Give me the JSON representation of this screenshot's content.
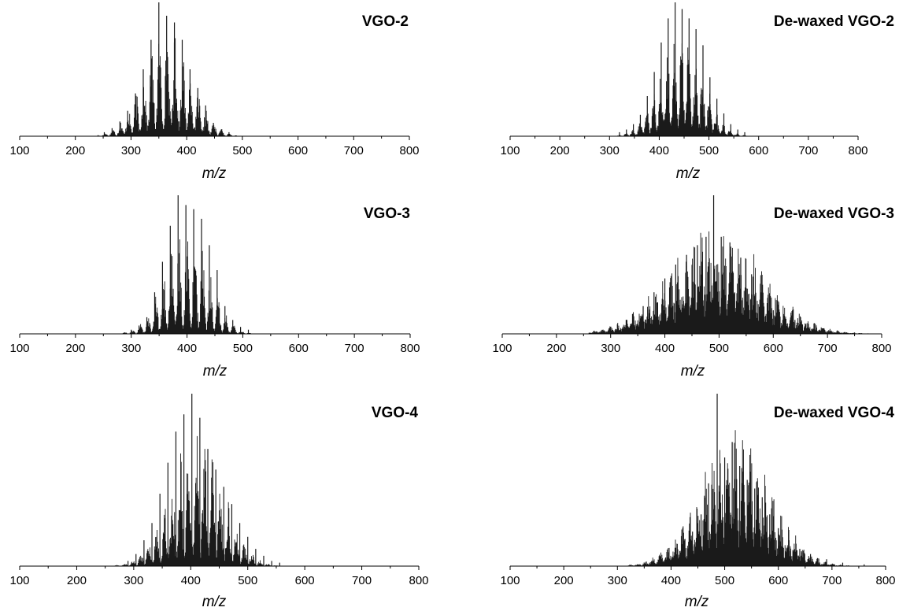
{
  "figure": {
    "colors": {
      "peaks": "#1a1a1a",
      "axis": "#000000",
      "background": "#ffffff"
    }
  },
  "chart_data": [
    {
      "type": "bar",
      "title": "VGO-2",
      "xlabel": "m/z",
      "ylabel": "",
      "x_ticks": [
        100,
        200,
        300,
        400,
        500,
        600,
        700,
        800
      ],
      "xlim": [
        100,
        800
      ],
      "ylim": [
        0,
        1
      ],
      "y_axis_shown": false,
      "distribution": {
        "center": 365,
        "spread": 42,
        "start": 240,
        "end": 490,
        "comb_spacing": 14,
        "comb_strength": 0.85
      },
      "peaks": [
        [
          252,
          0.03
        ],
        [
          266,
          0.06
        ],
        [
          280,
          0.11
        ],
        [
          294,
          0.19
        ],
        [
          308,
          0.32
        ],
        [
          322,
          0.5
        ],
        [
          336,
          0.72
        ],
        [
          350,
          1.0
        ],
        [
          364,
          0.9
        ],
        [
          378,
          0.85
        ],
        [
          392,
          0.72
        ],
        [
          406,
          0.5
        ],
        [
          420,
          0.36
        ],
        [
          434,
          0.23
        ],
        [
          448,
          0.1
        ],
        [
          462,
          0.05
        ],
        [
          476,
          0.03
        ]
      ]
    },
    {
      "type": "bar",
      "title": "De-waxed VGO-2",
      "xlabel": "m/z",
      "ylabel": "",
      "x_ticks": [
        100,
        200,
        300,
        400,
        500,
        600,
        700,
        800
      ],
      "xlim": [
        100,
        800
      ],
      "ylim": [
        0,
        1
      ],
      "y_axis_shown": false,
      "distribution": {
        "center": 445,
        "spread": 42,
        "start": 300,
        "end": 600,
        "comb_spacing": 14,
        "comb_strength": 0.8
      },
      "peaks": [
        [
          320,
          0.03
        ],
        [
          334,
          0.05
        ],
        [
          348,
          0.09
        ],
        [
          362,
          0.16
        ],
        [
          376,
          0.3
        ],
        [
          390,
          0.48
        ],
        [
          404,
          0.7
        ],
        [
          418,
          0.88
        ],
        [
          432,
          1.0
        ],
        [
          446,
          0.95
        ],
        [
          460,
          0.88
        ],
        [
          474,
          0.8
        ],
        [
          488,
          0.68
        ],
        [
          502,
          0.44
        ],
        [
          516,
          0.28
        ],
        [
          530,
          0.17
        ],
        [
          544,
          0.09
        ],
        [
          558,
          0.05
        ],
        [
          572,
          0.03
        ]
      ]
    },
    {
      "type": "bar",
      "title": "VGO-3",
      "xlabel": "m/z",
      "ylabel": "",
      "x_ticks": [
        100,
        200,
        300,
        400,
        500,
        600,
        700,
        800
      ],
      "xlim": [
        100,
        800
      ],
      "ylim": [
        0,
        1
      ],
      "y_axis_shown": false,
      "distribution": {
        "center": 400,
        "spread": 38,
        "start": 270,
        "end": 560,
        "comb_spacing": 14,
        "comb_strength": 0.9
      },
      "peaks": [
        [
          300,
          0.03
        ],
        [
          314,
          0.06
        ],
        [
          328,
          0.12
        ],
        [
          342,
          0.3
        ],
        [
          356,
          0.52
        ],
        [
          370,
          0.78
        ],
        [
          384,
          1.0
        ],
        [
          398,
          0.93
        ],
        [
          412,
          0.9
        ],
        [
          426,
          0.83
        ],
        [
          440,
          0.64
        ],
        [
          454,
          0.46
        ],
        [
          468,
          0.2
        ],
        [
          482,
          0.1
        ],
        [
          496,
          0.05
        ],
        [
          510,
          0.03
        ]
      ]
    },
    {
      "type": "bar",
      "title": "De-waxed VGO-3",
      "xlabel": "m/z",
      "ylabel": "",
      "x_ticks": [
        100,
        200,
        300,
        400,
        500,
        600,
        700,
        800
      ],
      "xlim": [
        100,
        800
      ],
      "ylim": [
        0,
        1
      ],
      "y_axis_shown": false,
      "distribution": {
        "center": 495,
        "spread": 85,
        "start": 260,
        "end": 780,
        "comb_spacing": 14,
        "comb_strength": 0.6
      },
      "peaks": [
        [
          300,
          0.05
        ],
        [
          330,
          0.1
        ],
        [
          360,
          0.2
        ],
        [
          380,
          0.3
        ],
        [
          400,
          0.4
        ],
        [
          420,
          0.5
        ],
        [
          440,
          0.57
        ],
        [
          460,
          0.64
        ],
        [
          476,
          0.7
        ],
        [
          490,
          1.0
        ],
        [
          504,
          0.7
        ],
        [
          520,
          0.66
        ],
        [
          540,
          0.55
        ],
        [
          560,
          0.43
        ],
        [
          580,
          0.25
        ],
        [
          600,
          0.17
        ],
        [
          620,
          0.13
        ],
        [
          640,
          0.1
        ],
        [
          660,
          0.07
        ],
        [
          690,
          0.04
        ],
        [
          720,
          0.02
        ],
        [
          750,
          0.01
        ]
      ]
    },
    {
      "type": "bar",
      "title": "VGO-4",
      "xlabel": "m/z",
      "ylabel": "",
      "x_ticks": [
        100,
        200,
        300,
        400,
        500,
        600,
        700,
        800
      ],
      "xlim": [
        100,
        800
      ],
      "ylim": [
        0,
        1
      ],
      "y_axis_shown": false,
      "distribution": {
        "center": 410,
        "spread": 45,
        "start": 260,
        "end": 600,
        "comb_spacing": 14,
        "comb_strength": 0.85
      },
      "peaks": [
        [
          290,
          0.03
        ],
        [
          304,
          0.07
        ],
        [
          318,
          0.15
        ],
        [
          332,
          0.25
        ],
        [
          346,
          0.42
        ],
        [
          360,
          0.6
        ],
        [
          374,
          0.78
        ],
        [
          388,
          0.88
        ],
        [
          402,
          1.0
        ],
        [
          416,
          0.86
        ],
        [
          430,
          0.68
        ],
        [
          444,
          0.56
        ],
        [
          458,
          0.46
        ],
        [
          472,
          0.36
        ],
        [
          486,
          0.25
        ],
        [
          500,
          0.17
        ],
        [
          514,
          0.1
        ],
        [
          528,
          0.06
        ],
        [
          542,
          0.03
        ],
        [
          556,
          0.02
        ]
      ]
    },
    {
      "type": "bar",
      "title": "De-waxed VGO-4",
      "xlabel": "m/z",
      "ylabel": "",
      "x_ticks": [
        100,
        200,
        300,
        400,
        500,
        600,
        700,
        800
      ],
      "xlim": [
        100,
        800
      ],
      "ylim": [
        0,
        1
      ],
      "y_axis_shown": false,
      "distribution": {
        "center": 520,
        "spread": 65,
        "start": 320,
        "end": 780,
        "comb_spacing": 14,
        "comb_strength": 0.65
      },
      "peaks": [
        [
          360,
          0.02
        ],
        [
          390,
          0.05
        ],
        [
          420,
          0.1
        ],
        [
          440,
          0.2
        ],
        [
          456,
          0.3
        ],
        [
          470,
          0.48
        ],
        [
          486,
          1.0
        ],
        [
          500,
          0.63
        ],
        [
          514,
          0.72
        ],
        [
          528,
          0.58
        ],
        [
          542,
          0.5
        ],
        [
          556,
          0.45
        ],
        [
          570,
          0.4
        ],
        [
          584,
          0.3
        ],
        [
          600,
          0.22
        ],
        [
          620,
          0.15
        ],
        [
          640,
          0.1
        ],
        [
          660,
          0.07
        ],
        [
          690,
          0.04
        ],
        [
          720,
          0.02
        ],
        [
          760,
          0.01
        ]
      ]
    }
  ]
}
